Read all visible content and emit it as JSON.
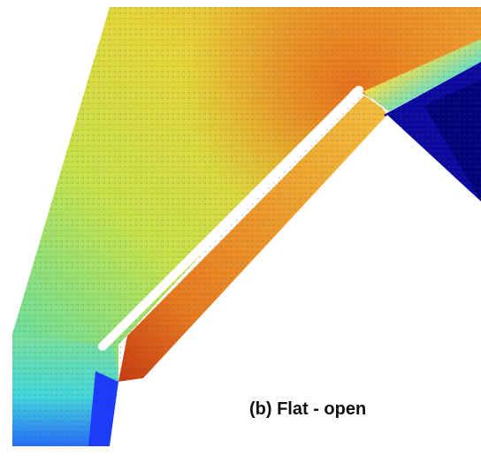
{
  "figure": {
    "caption": "(b) Flat - open",
    "colormap": [
      "#000080",
      "#0000ff",
      "#00c0ff",
      "#40e0d0",
      "#a0e060",
      "#e8e83a",
      "#f0a020",
      "#c83010"
    ]
  }
}
